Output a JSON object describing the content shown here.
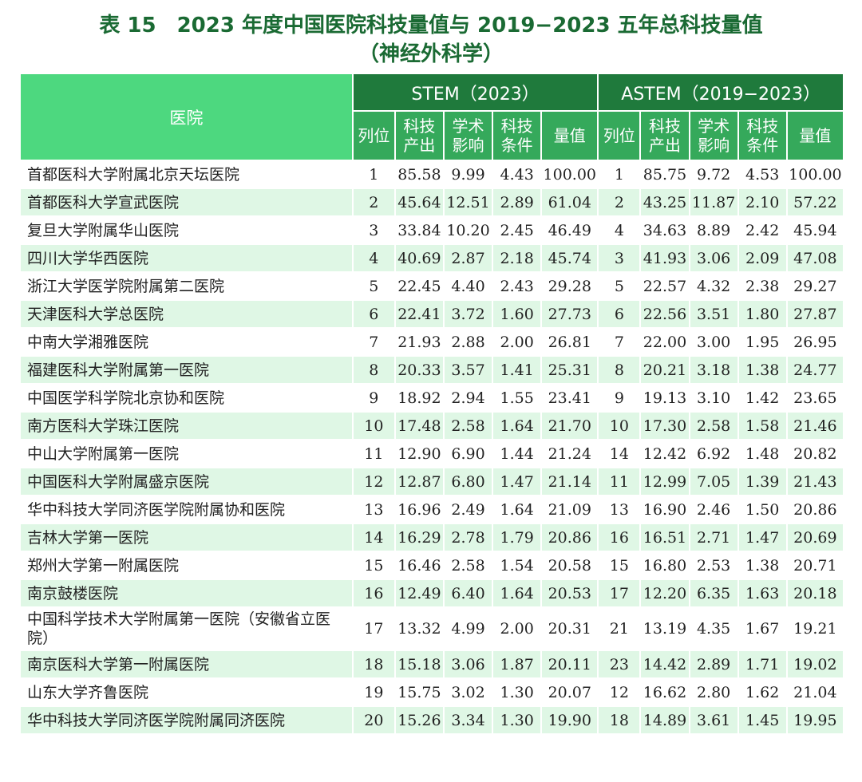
{
  "title": {
    "line1": "表 15　2023 年度中国医院科技量值与 2019−2023 五年总科技量值",
    "line2": "（神经外科学）"
  },
  "table": {
    "hospital_header": "医院",
    "group1": "STEM（2023）",
    "group2": "ASTEM（2019−2023）",
    "subheaders": [
      {
        "l1": "列位",
        "l2": ""
      },
      {
        "l1": "科技",
        "l2": "产出"
      },
      {
        "l1": "学术",
        "l2": "影响"
      },
      {
        "l1": "科技",
        "l2": "条件"
      },
      {
        "l1": "量值",
        "l2": ""
      }
    ],
    "rows": [
      [
        "首都医科大学附属北京天坛医院",
        "1",
        "85.58",
        "9.99",
        "4.43",
        "100.00",
        "1",
        "85.75",
        "9.72",
        "4.53",
        "100.00"
      ],
      [
        "首都医科大学宣武医院",
        "2",
        "45.64",
        "12.51",
        "2.89",
        "61.04",
        "2",
        "43.25",
        "11.87",
        "2.10",
        "57.22"
      ],
      [
        "复旦大学附属华山医院",
        "3",
        "33.84",
        "10.20",
        "2.45",
        "46.49",
        "4",
        "34.63",
        "8.89",
        "2.42",
        "45.94"
      ],
      [
        "四川大学华西医院",
        "4",
        "40.69",
        "2.87",
        "2.18",
        "45.74",
        "3",
        "41.93",
        "3.06",
        "2.09",
        "47.08"
      ],
      [
        "浙江大学医学院附属第二医院",
        "5",
        "22.45",
        "4.40",
        "2.43",
        "29.28",
        "5",
        "22.57",
        "4.32",
        "2.38",
        "29.27"
      ],
      [
        "天津医科大学总医院",
        "6",
        "22.41",
        "3.72",
        "1.60",
        "27.73",
        "6",
        "22.56",
        "3.51",
        "1.80",
        "27.87"
      ],
      [
        "中南大学湘雅医院",
        "7",
        "21.93",
        "2.88",
        "2.00",
        "26.81",
        "7",
        "22.00",
        "3.00",
        "1.95",
        "26.95"
      ],
      [
        "福建医科大学附属第一医院",
        "8",
        "20.33",
        "3.57",
        "1.41",
        "25.31",
        "8",
        "20.21",
        "3.18",
        "1.38",
        "24.77"
      ],
      [
        "中国医学科学院北京协和医院",
        "9",
        "18.92",
        "2.94",
        "1.55",
        "23.41",
        "9",
        "19.13",
        "3.10",
        "1.42",
        "23.65"
      ],
      [
        "南方医科大学珠江医院",
        "10",
        "17.48",
        "2.58",
        "1.64",
        "21.70",
        "10",
        "17.30",
        "2.58",
        "1.58",
        "21.46"
      ],
      [
        "中山大学附属第一医院",
        "11",
        "12.90",
        "6.90",
        "1.44",
        "21.24",
        "14",
        "12.42",
        "6.92",
        "1.48",
        "20.82"
      ],
      [
        "中国医科大学附属盛京医院",
        "12",
        "12.87",
        "6.80",
        "1.47",
        "21.14",
        "11",
        "12.99",
        "7.05",
        "1.39",
        "21.43"
      ],
      [
        "华中科技大学同济医学院附属协和医院",
        "13",
        "16.96",
        "2.49",
        "1.64",
        "21.09",
        "13",
        "16.90",
        "2.46",
        "1.50",
        "20.86"
      ],
      [
        "吉林大学第一医院",
        "14",
        "16.29",
        "2.78",
        "1.79",
        "20.86",
        "16",
        "16.51",
        "2.71",
        "1.47",
        "20.69"
      ],
      [
        "郑州大学第一附属医院",
        "15",
        "16.46",
        "2.58",
        "1.54",
        "20.58",
        "15",
        "16.80",
        "2.53",
        "1.38",
        "20.71"
      ],
      [
        "南京鼓楼医院",
        "16",
        "12.49",
        "6.40",
        "1.64",
        "20.53",
        "17",
        "12.20",
        "6.35",
        "1.63",
        "20.18"
      ],
      [
        "中国科学技术大学附属第一医院（安徽省立医院）",
        "17",
        "13.32",
        "4.99",
        "2.00",
        "20.31",
        "21",
        "13.19",
        "4.35",
        "1.67",
        "19.21"
      ],
      [
        "南京医科大学第一附属医院",
        "18",
        "15.18",
        "3.06",
        "1.87",
        "20.11",
        "23",
        "14.42",
        "2.89",
        "1.71",
        "19.02"
      ],
      [
        "山东大学齐鲁医院",
        "19",
        "15.75",
        "3.02",
        "1.30",
        "20.07",
        "12",
        "16.62",
        "2.80",
        "1.62",
        "21.04"
      ],
      [
        "华中科技大学同济医学院附属同济医院",
        "20",
        "15.26",
        "3.34",
        "1.30",
        "19.90",
        "18",
        "14.89",
        "3.61",
        "1.45",
        "19.95"
      ]
    ]
  }
}
